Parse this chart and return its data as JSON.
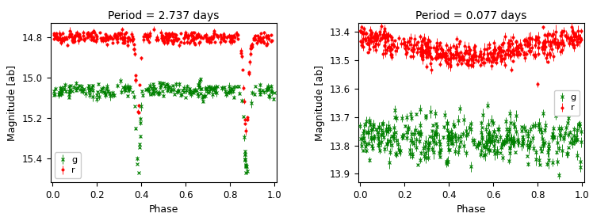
{
  "left_title": "Period = 2.737 days",
  "right_title": "Period = 0.077 days",
  "xlabel": "Phase",
  "ylabel": "Magnitude [ab]",
  "left_ylim": [
    14.73,
    15.52
  ],
  "left_yticks": [
    14.8,
    15.0,
    15.2,
    15.4
  ],
  "left_xlim": [
    -0.01,
    1.01
  ],
  "right_ylim": [
    13.37,
    13.93
  ],
  "right_yticks": [
    13.4,
    13.5,
    13.6,
    13.7,
    13.8,
    13.9
  ],
  "right_xlim": [
    -0.01,
    1.01
  ],
  "seed": 42,
  "g_color": "#008000",
  "r_color": "#ff0000",
  "marker_g": "x",
  "marker_r": "o",
  "markersize_g": 2.5,
  "markersize_r": 2.5,
  "elinewidth": 0.6,
  "capsize": 0,
  "left_legend_loc": "lower left",
  "right_legend_loc": "center right"
}
